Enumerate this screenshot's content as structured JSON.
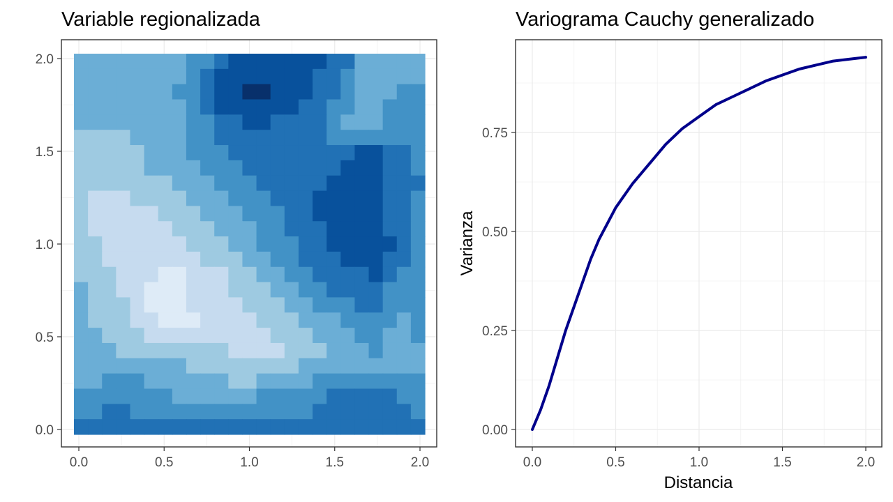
{
  "chart_data": [
    {
      "type": "heatmap",
      "title": "Variable regionalizada",
      "xlabel": "",
      "ylabel": "",
      "xlim": [
        0,
        2
      ],
      "ylim": [
        0,
        2
      ],
      "x_ticks": [
        "0.0",
        "0.5",
        "1.0",
        "1.5",
        "2.0"
      ],
      "y_ticks": [
        "0.0",
        "0.5",
        "1.0",
        "1.5",
        "2.0"
      ],
      "grid": true,
      "legend": "none",
      "palette": [
        "#deebf7",
        "#c6dbef",
        "#9ecae1",
        "#6baed6",
        "#4292c6",
        "#2171b5",
        "#08519c",
        "#08306b"
      ],
      "grid_size": [
        25,
        25
      ],
      "levels_rows_top_to_bottom": [
        "3333333344566666665533333",
        "3333333345666666655433333",
        "3333333445667766655433344",
        "3333333345666666554433444",
        "3333333344556655554333444",
        "2222333344555555554444444",
        "2222233344455555555566554",
        "2222233334445555555666554",
        "2222222333444555556666555",
        "2111222233344455566666554",
        "2111112223334445566666554",
        "2111111222333445556666554",
        "2211111122233444556666654",
        "2211111112223344555666554",
        "2221110011122334455556544",
        "3221100011122233445555444",
        "3222100011112223344455444",
        "3222110001111222333444434",
        "3322211111111122233344334",
        "3332222222211112223334333",
        "3333333322222222333333333",
        "3344433333322333344444444",
        "4444444333333444445555544",
        "4455444444444444455555554",
        "5555555555555555555555555"
      ]
    },
    {
      "type": "line",
      "title": "Variograma Cauchy generalizado",
      "xlabel": "Distancia",
      "ylabel": "Varianza",
      "xlim": [
        0,
        2
      ],
      "ylim": [
        0,
        0.94
      ],
      "x_ticks": [
        "0.0",
        "0.5",
        "1.0",
        "1.5",
        "2.0"
      ],
      "y_ticks": [
        "0.00",
        "0.25",
        "0.50",
        "0.75"
      ],
      "grid": true,
      "legend": "none",
      "line_color": "#00008b",
      "x": [
        0,
        0.05,
        0.1,
        0.15,
        0.2,
        0.25,
        0.3,
        0.35,
        0.4,
        0.45,
        0.5,
        0.6,
        0.7,
        0.8,
        0.9,
        1.0,
        1.1,
        1.2,
        1.3,
        1.4,
        1.5,
        1.6,
        1.7,
        1.8,
        1.9,
        2.0
      ],
      "y": [
        0.0,
        0.05,
        0.11,
        0.18,
        0.25,
        0.31,
        0.37,
        0.43,
        0.48,
        0.52,
        0.56,
        0.62,
        0.67,
        0.72,
        0.76,
        0.79,
        0.82,
        0.84,
        0.86,
        0.88,
        0.895,
        0.91,
        0.92,
        0.93,
        0.935,
        0.94
      ]
    }
  ]
}
